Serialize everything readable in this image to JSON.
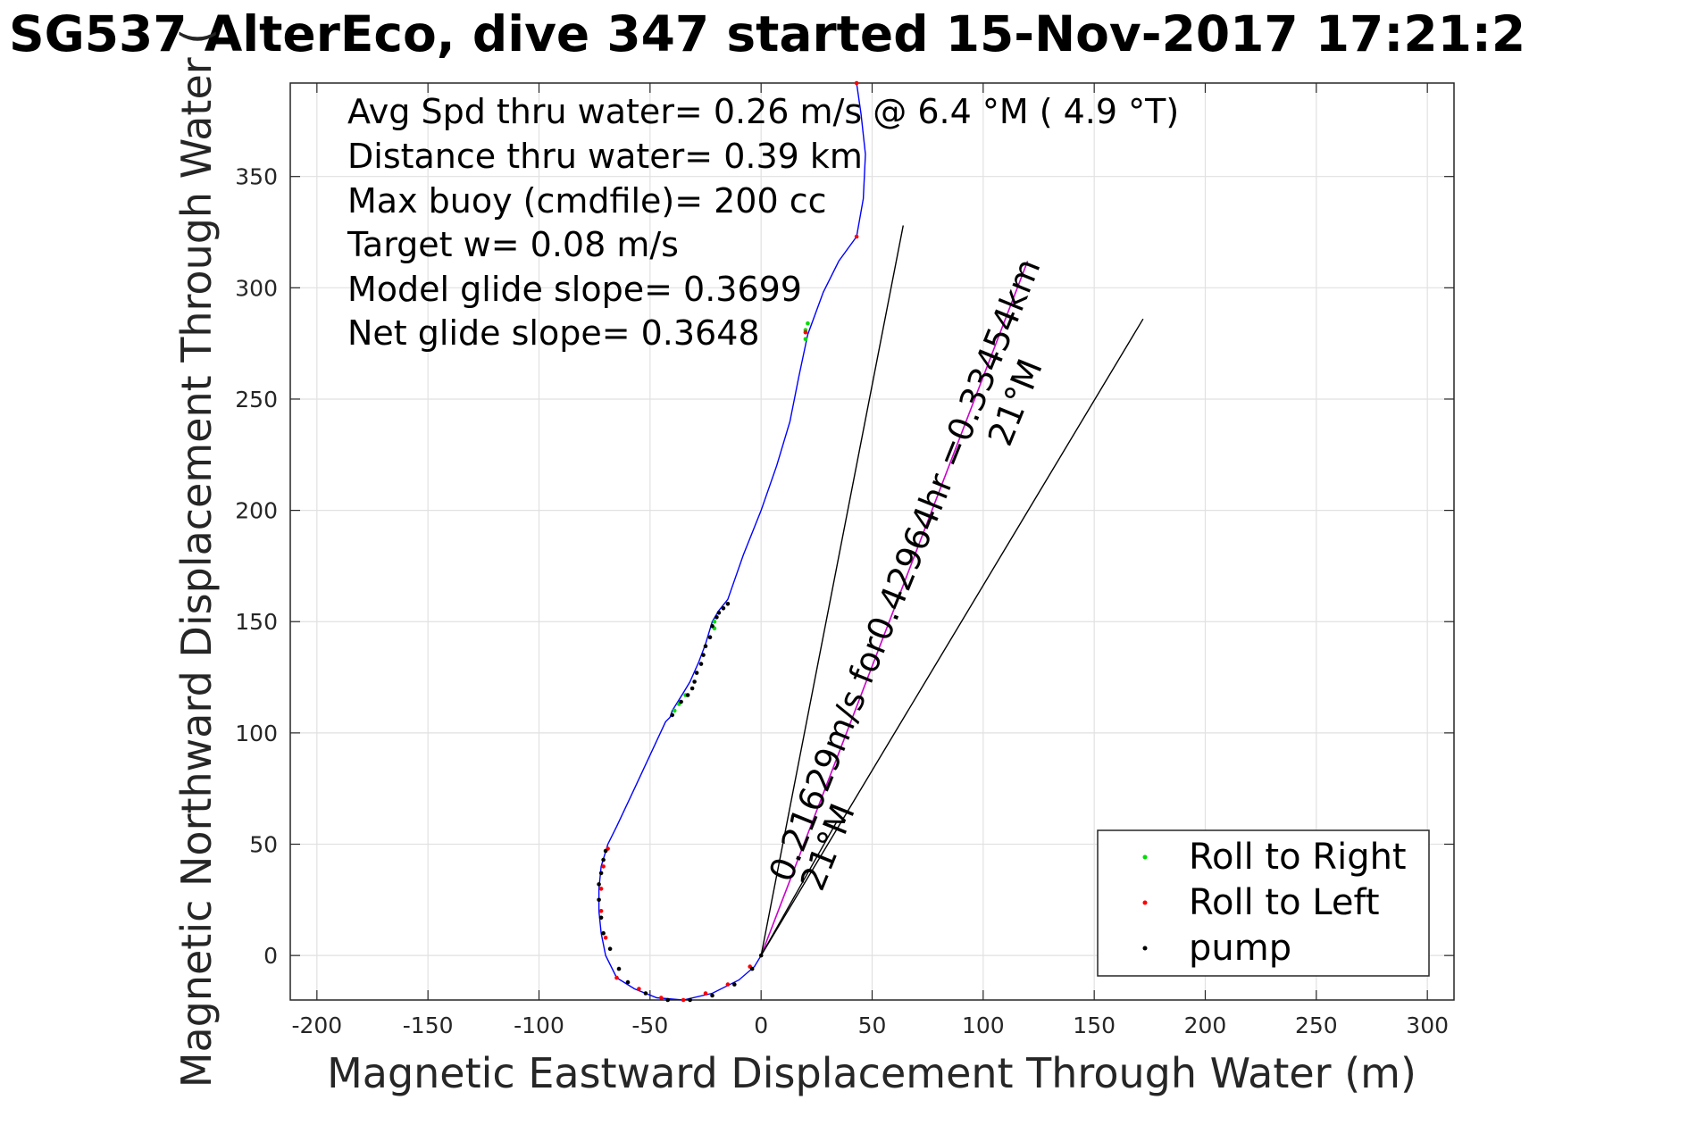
{
  "chart_data": {
    "type": "scatter",
    "title": "SG537 AlterEco, dive 347 started 15-Nov-2017 17:21:2",
    "xlabel": "Magnetic Eastward Displacement Through Water (m)",
    "ylabel": "Magnetic Northward Displacement Through Water (",
    "xlim": [
      -212,
      312
    ],
    "ylim": [
      -20,
      392
    ],
    "xticks": [
      -200,
      -150,
      -100,
      -50,
      0,
      50,
      100,
      150,
      200,
      250,
      300
    ],
    "yticks": [
      0,
      50,
      100,
      150,
      200,
      250,
      300,
      350
    ],
    "grid": true,
    "info_lines": [
      "Avg Spd thru water=  0.26 m/s @   6.4 °M (  4.9 °T)",
      "Distance thru water=  0.39 km",
      "Max buoy (cmdfile)= 200 cc",
      "Target w= 0.08 m/s",
      "Model glide slope= 0.3699",
      "Net glide slope= 0.3648"
    ],
    "vector_label": "0.21629m/s for0.42964hr =0.33454km",
    "vector_heading": "21°M",
    "small_vector_label": "21°M",
    "colors": {
      "track": "#0000ff",
      "vector": "#cc00cc",
      "roll_right": "#00dd00",
      "roll_left": "#ff0000",
      "pump": "#000000",
      "grid": "#e1e1e1",
      "axes": "#262626"
    },
    "series": [
      {
        "name": "track",
        "kind": "line",
        "points": [
          [
            43,
            392
          ],
          [
            45,
            378
          ],
          [
            47,
            360
          ],
          [
            46,
            340
          ],
          [
            43,
            323
          ],
          [
            35,
            312
          ],
          [
            28,
            298
          ],
          [
            21,
            279
          ],
          [
            17,
            260
          ],
          [
            13,
            240
          ],
          [
            7,
            220
          ],
          [
            0,
            200
          ],
          [
            -8,
            180
          ],
          [
            -15,
            160
          ],
          [
            -19,
            155
          ],
          [
            -22,
            150
          ],
          [
            -25,
            140
          ],
          [
            -28,
            132
          ],
          [
            -32,
            123
          ],
          [
            -35,
            118
          ],
          [
            -40,
            110
          ],
          [
            -41,
            107
          ],
          [
            -43,
            105
          ],
          [
            -50,
            90
          ],
          [
            -57,
            75
          ],
          [
            -65,
            58
          ],
          [
            -69,
            50
          ],
          [
            -72,
            40
          ],
          [
            -73,
            30
          ],
          [
            -73,
            20
          ],
          [
            -72,
            10
          ],
          [
            -70,
            0
          ],
          [
            -65,
            -10
          ],
          [
            -57,
            -15
          ],
          [
            -47,
            -19
          ],
          [
            -35,
            -20
          ],
          [
            -22,
            -17
          ],
          [
            -10,
            -11
          ],
          [
            -3,
            -5
          ],
          [
            0,
            0
          ]
        ]
      },
      {
        "name": "Roll to Right",
        "kind": "markers",
        "points": [
          [
            21,
            284
          ],
          [
            20,
            281
          ],
          [
            20,
            277
          ],
          [
            -21,
            150
          ],
          [
            -21,
            147
          ],
          [
            -34,
            117
          ],
          [
            -37,
            113
          ],
          [
            -39,
            110
          ]
        ]
      },
      {
        "name": "Roll to Left",
        "kind": "markers",
        "points": [
          [
            43,
            392
          ],
          [
            43,
            323
          ],
          [
            20,
            280
          ],
          [
            -69,
            48
          ],
          [
            -71,
            40
          ],
          [
            -72,
            30
          ],
          [
            -72,
            20
          ],
          [
            -70,
            8
          ],
          [
            -65,
            -10
          ],
          [
            -55,
            -15
          ],
          [
            -45,
            -19
          ],
          [
            -35,
            -20
          ],
          [
            -25,
            -17
          ],
          [
            -15,
            -13
          ],
          [
            -5,
            -5
          ]
        ]
      },
      {
        "name": "pump",
        "kind": "markers",
        "points": [
          [
            -15,
            158
          ],
          [
            -17,
            156
          ],
          [
            -19,
            154
          ],
          [
            -20,
            152
          ],
          [
            -22,
            148
          ],
          [
            -23,
            143
          ],
          [
            -25,
            139
          ],
          [
            -26,
            135
          ],
          [
            -27,
            131
          ],
          [
            -29,
            127
          ],
          [
            -30,
            123
          ],
          [
            -31,
            120
          ],
          [
            -33,
            117
          ],
          [
            -36,
            114
          ],
          [
            -40,
            108
          ],
          [
            -70,
            47
          ],
          [
            -71,
            43
          ],
          [
            -72,
            37
          ],
          [
            -73,
            32
          ],
          [
            -73,
            25
          ],
          [
            -72,
            17
          ],
          [
            -71,
            10
          ],
          [
            -68,
            3
          ],
          [
            -64,
            -6
          ],
          [
            -60,
            -12
          ],
          [
            -52,
            -17
          ],
          [
            -42,
            -20
          ],
          [
            -32,
            -20
          ],
          [
            -22,
            -18
          ],
          [
            -12,
            -13
          ],
          [
            -4,
            -6
          ],
          [
            0,
            0
          ]
        ]
      },
      {
        "name": "current-vector",
        "kind": "line",
        "points": [
          [
            0,
            0
          ],
          [
            120,
            312
          ]
        ]
      },
      {
        "name": "cone-left",
        "kind": "line",
        "points": [
          [
            0,
            0
          ],
          [
            64,
            328
          ]
        ]
      },
      {
        "name": "cone-right",
        "kind": "line",
        "points": [
          [
            0,
            0
          ],
          [
            172,
            286
          ]
        ]
      },
      {
        "name": "small-arrow",
        "kind": "line",
        "points": [
          [
            0,
            0
          ],
          [
            34,
            60
          ]
        ]
      }
    ],
    "legend": {
      "position": "bottom-right",
      "entries": [
        "Roll to Right",
        "Roll to Left",
        "pump"
      ]
    }
  }
}
